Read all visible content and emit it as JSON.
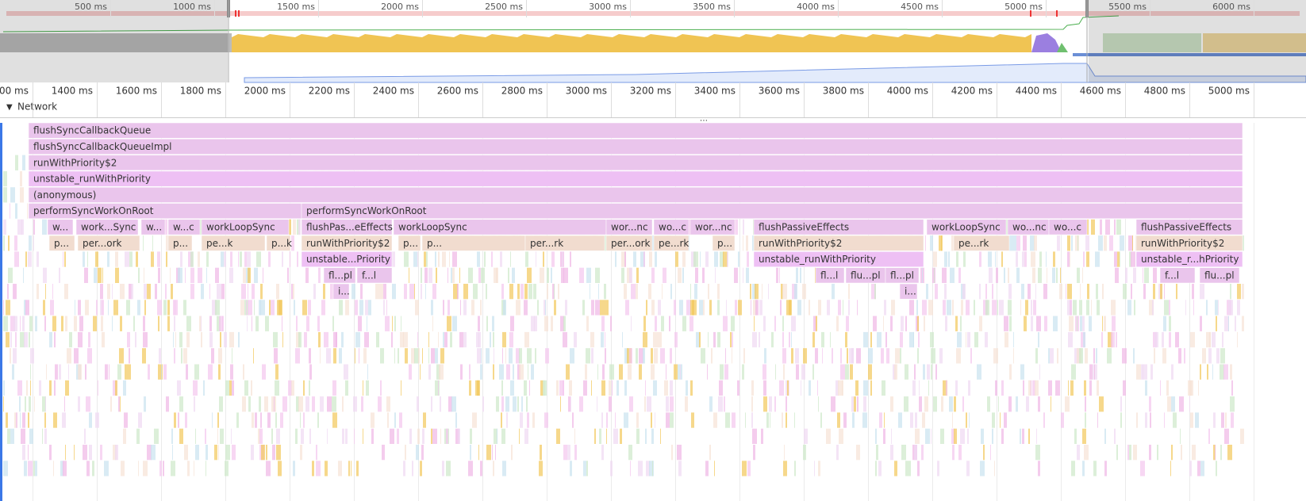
{
  "overview_ruler": [
    "500 ms",
    "1000 ms",
    "1500 ms",
    "2000 ms",
    "2500 ms",
    "3000 ms",
    "3500 ms",
    "4000 ms",
    "4500 ms",
    "5000 ms",
    "5500 ms",
    "6000 ms"
  ],
  "main_ruler": [
    "00 ms",
    "1400 ms",
    "1600 ms",
    "1800 ms",
    "2000 ms",
    "2200 ms",
    "2400 ms",
    "2600 ms",
    "2800 ms",
    "3000 ms",
    "3200 ms",
    "3400 ms",
    "3600 ms",
    "3800 ms",
    "4000 ms",
    "4200 ms",
    "4400 ms",
    "4600 ms",
    "4800 ms",
    "5000 ms"
  ],
  "network_label": "Network",
  "flame": [
    [
      "flushSyncCallbackQueue"
    ],
    [
      "flushSyncCallbackQueueImpl"
    ],
    [
      "runWithPriority$2"
    ],
    [
      "unstable_runWithPriority"
    ],
    [
      "(anonymous)"
    ],
    [
      "performSyncWorkOnRoot",
      "performSyncWorkOnRoot"
    ],
    [
      "w...",
      "work...Sync",
      "w...",
      "w...c",
      "workLoopSync",
      "flushPas...eEffects",
      "workLoopSync",
      "wor...nc",
      "wo...c",
      "wor...nc",
      "flushPassiveEffects",
      "workLoopSync",
      "wo...nc",
      "wo...c",
      "flushPassiveEffects"
    ],
    [
      "p...",
      "per...ork",
      "p...",
      "pe...k",
      "p...k",
      "runWithPriority$2",
      "p...",
      "p...",
      "per...rk",
      "per...ork",
      "pe...rk",
      "p...",
      "runWithPriority$2",
      "pe...rk",
      "runWithPriority$2"
    ],
    [
      "unstable...Priority",
      "unstable_runWithPriority",
      "unstable_r...hPriority"
    ],
    [
      "fl...pl",
      "f...l",
      "fl...l",
      "flu...pl",
      "fl...pl",
      "f...l",
      "flu...pl"
    ],
    [
      "i...",
      "i..."
    ]
  ]
}
